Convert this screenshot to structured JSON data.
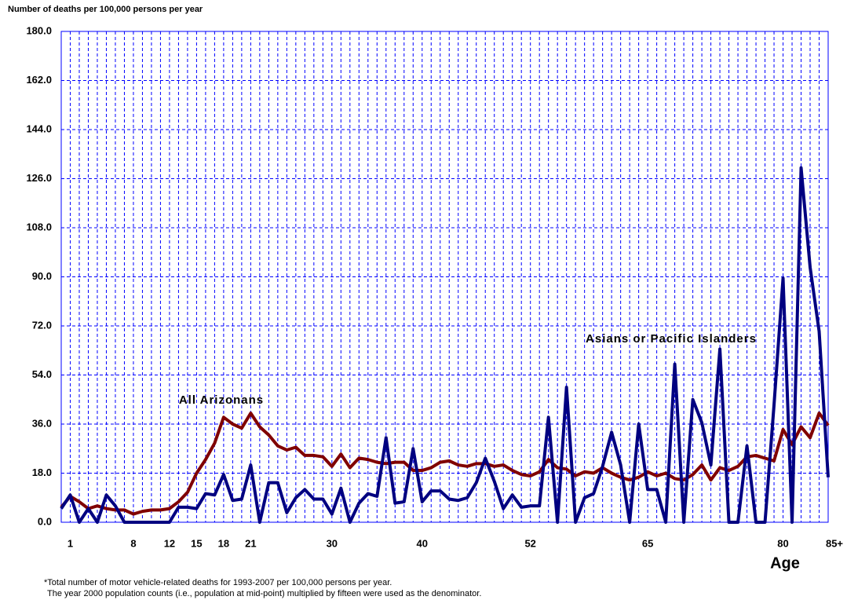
{
  "chart_data": {
    "type": "line",
    "y_label": "Number of deaths per 100,000 persons per year",
    "x_label": "Age",
    "footnotes": [
      "*Total number of motor vehicle-related deaths for 1993-2007 per 100,000 persons per year.",
      "The year 2000 population counts (i.e., population at mid-point) multiplied by fifteen were used as the denominator."
    ],
    "x": [
      0,
      1,
      2,
      3,
      4,
      5,
      6,
      7,
      8,
      9,
      10,
      11,
      12,
      13,
      14,
      15,
      16,
      17,
      18,
      19,
      20,
      21,
      22,
      23,
      24,
      25,
      26,
      27,
      28,
      29,
      30,
      31,
      32,
      33,
      34,
      35,
      36,
      37,
      38,
      39,
      40,
      41,
      42,
      43,
      44,
      45,
      46,
      47,
      48,
      49,
      50,
      51,
      52,
      53,
      54,
      55,
      56,
      57,
      58,
      59,
      60,
      61,
      62,
      63,
      64,
      65,
      66,
      67,
      68,
      69,
      70,
      71,
      72,
      73,
      74,
      75,
      76,
      77,
      78,
      79,
      80,
      81,
      82,
      83,
      84,
      85
    ],
    "xlim": [
      0,
      85
    ],
    "xticks": [
      1,
      8,
      12,
      15,
      18,
      21,
      30,
      40,
      52,
      65,
      80,
      {
        "value": 85,
        "label": "85+"
      }
    ],
    "ylim": [
      0,
      180
    ],
    "yticks": [
      {
        "value": 0,
        "label": "0.0"
      },
      {
        "value": 18,
        "label": "18.0"
      },
      {
        "value": 36,
        "label": "36.0"
      },
      {
        "value": 54,
        "label": "54.0"
      },
      {
        "value": 72,
        "label": "72.0"
      },
      {
        "value": 90,
        "label": "90.0"
      },
      {
        "value": 108,
        "label": "108.0"
      },
      {
        "value": 126,
        "label": "126.0"
      },
      {
        "value": 144,
        "label": "144.0"
      },
      {
        "value": 162,
        "label": "162.0"
      },
      {
        "value": 180,
        "label": "180.0"
      }
    ],
    "grid": true,
    "series": [
      {
        "name": "All Arizonans",
        "color": "#800000",
        "values": [
          5.5,
          9.5,
          7.5,
          5,
          6,
          5,
          4.5,
          4.5,
          3,
          4,
          4.5,
          4.5,
          5,
          7.5,
          11,
          18,
          23,
          29,
          38.5,
          36,
          34.5,
          40,
          35,
          32,
          28,
          26.5,
          27.5,
          24.5,
          24.5,
          24,
          20.5,
          25,
          20,
          23.5,
          23,
          22,
          21.5,
          22,
          22,
          19,
          19,
          20,
          22,
          22.5,
          21,
          20.5,
          21.5,
          21.5,
          20.5,
          21,
          19,
          17.5,
          17,
          18.5,
          23,
          20,
          19.5,
          17,
          18.5,
          18,
          20,
          18,
          16.5,
          15.5,
          16.5,
          18.5,
          17,
          18,
          16,
          15.5,
          17.5,
          21,
          15.5,
          20,
          19,
          20.5,
          24,
          24.5,
          23.5,
          22.5,
          34,
          28.5,
          35,
          31,
          40,
          35.5
        ]
      },
      {
        "name": "Asians or Pacific Islanders",
        "color": "#000080",
        "values": [
          5,
          10,
          0,
          5,
          0,
          10,
          6,
          0,
          0,
          0,
          0,
          0,
          0,
          5.5,
          5.5,
          5,
          10.5,
          10,
          17.5,
          8,
          8.5,
          21,
          0,
          14.5,
          14.5,
          3.5,
          9,
          12,
          8.5,
          8.5,
          3,
          12.5,
          0,
          7,
          10.5,
          9.5,
          31,
          7,
          7.5,
          27,
          7.5,
          11.5,
          11.5,
          8.5,
          8,
          9,
          14.5,
          23.5,
          15,
          5,
          10,
          5.5,
          6,
          6,
          38.5,
          0,
          49.5,
          0,
          9,
          10.5,
          20.5,
          33,
          21,
          0,
          36,
          12,
          12,
          0,
          58,
          0,
          45,
          36.5,
          21,
          63.5,
          0,
          0,
          28,
          0,
          0,
          43,
          89.5,
          0,
          130,
          93.5,
          70,
          16.5
        ]
      }
    ]
  }
}
